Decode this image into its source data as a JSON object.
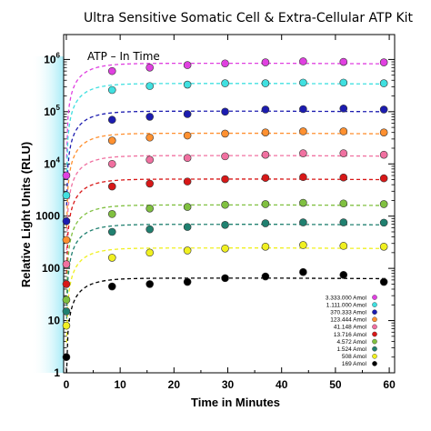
{
  "chart_data": {
    "type": "scatter",
    "title": "Ultra Sensitive Somatic Cell & Extra-Cellular ATP Kit",
    "annotation": "ATP – In Time",
    "xlabel": "Time in Minutes",
    "ylabel": "Relative Light Units (RLU)",
    "xlim": [
      -0.5,
      61
    ],
    "ylim": [
      1,
      3000000
    ],
    "y_scale": "log",
    "x_ticks": [
      "0",
      "10",
      "20",
      "30",
      "40",
      "50",
      "60"
    ],
    "y_ticks": [
      {
        "base": "1",
        "exp": ""
      },
      {
        "base": "10",
        "exp": ""
      },
      {
        "base": "100",
        "exp": ""
      },
      {
        "base": "1000",
        "exp": ""
      },
      {
        "base": "10",
        "exp": "4"
      },
      {
        "base": "10",
        "exp": "5"
      },
      {
        "base": "10",
        "exp": "6"
      }
    ],
    "legend_position": "bottom-right",
    "x": [
      0,
      8.5,
      15.5,
      22.5,
      29.5,
      37,
      44,
      51.5,
      59
    ],
    "series": [
      {
        "name": "3.333.000 Amol",
        "color": "#e040e0",
        "values": [
          6000,
          600000,
          700000,
          780000,
          840000,
          880000,
          920000,
          900000,
          880000
        ]
      },
      {
        "name": "1.111.000 Amol",
        "color": "#40e0e0",
        "values": [
          2500,
          260000,
          310000,
          330000,
          350000,
          350000,
          360000,
          360000,
          350000
        ]
      },
      {
        "name": "370.333 Amol",
        "color": "#1c1cb0",
        "values": [
          800,
          70000,
          80000,
          90000,
          100000,
          110000,
          112000,
          115000,
          110000
        ]
      },
      {
        "name": "123.444 Amol",
        "color": "#ff9030",
        "values": [
          350,
          28000,
          32000,
          35000,
          38000,
          40000,
          42000,
          42000,
          40000
        ]
      },
      {
        "name": "41.148 Amol",
        "color": "#f070a0",
        "values": [
          120,
          10000,
          12000,
          13000,
          14000,
          15000,
          16000,
          16000,
          15000
        ]
      },
      {
        "name": "13.716 Amol",
        "color": "#d81818",
        "values": [
          50,
          3700,
          4200,
          4600,
          5100,
          5400,
          5600,
          5500,
          5300
        ]
      },
      {
        "name": "4.572 Amol",
        "color": "#80c040",
        "values": [
          25,
          1100,
          1400,
          1500,
          1650,
          1700,
          1800,
          1750,
          1700
        ]
      },
      {
        "name": "1.524 Amol",
        "color": "#208070",
        "values": [
          15,
          500,
          560,
          620,
          680,
          730,
          760,
          760,
          750
        ]
      },
      {
        "name": "508 Amol",
        "color": "#f0f020",
        "values": [
          8,
          160,
          200,
          220,
          240,
          260,
          280,
          270,
          260
        ]
      },
      {
        "name": "169 Amol",
        "color": "#000000",
        "values": [
          2,
          45,
          50,
          55,
          65,
          70,
          85,
          75,
          55
        ]
      }
    ]
  }
}
